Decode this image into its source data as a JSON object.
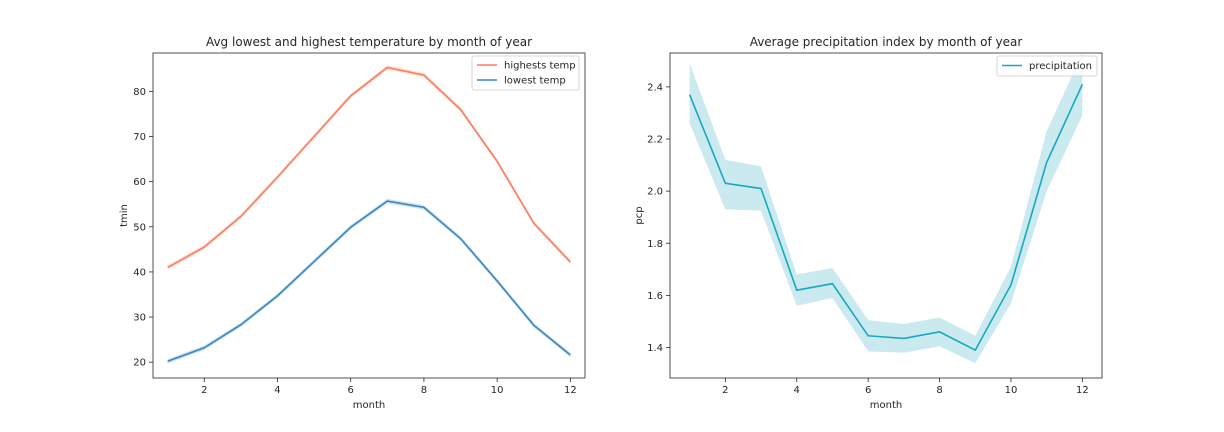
{
  "colors": {
    "high": "#fa7e61",
    "low": "#3a87c0",
    "precip": "#17a8c0",
    "precip_band": "#9fd9e4"
  },
  "chart_data": [
    {
      "type": "line",
      "title": "Avg lowest and highest temperature by month of year",
      "xlabel": "month",
      "ylabel": "tmin",
      "xlim": [
        0.6,
        12.4
      ],
      "ylim": [
        16.5,
        88.5
      ],
      "xticks": [
        2,
        4,
        6,
        8,
        10,
        12
      ],
      "yticks": [
        20,
        30,
        40,
        50,
        60,
        70,
        80
      ],
      "x": [
        1,
        2,
        3,
        4,
        5,
        6,
        7,
        8,
        9,
        10,
        11,
        12
      ],
      "series": [
        {
          "name": "highests temp",
          "values": [
            41.0,
            45.5,
            52.3,
            61.0,
            70.0,
            79.0,
            85.3,
            83.6,
            76.0,
            64.5,
            50.8,
            42.2
          ]
        },
        {
          "name": "lowest temp",
          "values": [
            20.2,
            23.2,
            28.3,
            34.7,
            42.3,
            49.9,
            55.7,
            54.3,
            47.4,
            38.0,
            28.2,
            21.6
          ]
        }
      ]
    },
    {
      "type": "line",
      "title": "Average precipitation index by month of year",
      "xlabel": "month",
      "ylabel": "pcp",
      "xlim": [
        0.45,
        12.55
      ],
      "ylim": [
        1.283,
        2.53
      ],
      "xticks": [
        2,
        4,
        6,
        8,
        10,
        12
      ],
      "yticks": [
        "1.4",
        "1.6",
        "1.8",
        "2.0",
        "2.2",
        "2.4"
      ],
      "x": [
        1,
        2,
        3,
        4,
        5,
        6,
        7,
        8,
        9,
        10,
        11,
        12
      ],
      "series": [
        {
          "name": "precipitation",
          "values": [
            2.37,
            2.03,
            2.01,
            1.62,
            1.645,
            1.445,
            1.435,
            1.46,
            1.39,
            1.64,
            2.11,
            2.41
          ],
          "ci_low": [
            2.26,
            1.93,
            1.925,
            1.56,
            1.59,
            1.385,
            1.38,
            1.405,
            1.34,
            1.57,
            2.0,
            2.29
          ],
          "ci_high": [
            2.49,
            2.12,
            2.095,
            1.68,
            1.705,
            1.505,
            1.49,
            1.515,
            1.445,
            1.71,
            2.23,
            2.53
          ]
        }
      ]
    }
  ]
}
